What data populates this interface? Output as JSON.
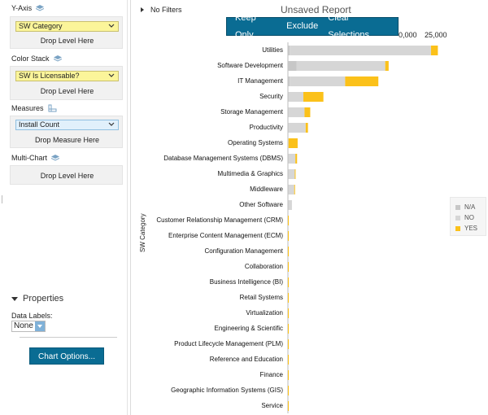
{
  "sidebar": {
    "yaxis": {
      "label": "Y-Axis",
      "field": "SW Category",
      "drop": "Drop Level Here"
    },
    "color": {
      "label": "Color Stack",
      "field": "SW Is Licensable?",
      "drop": "Drop Level Here"
    },
    "measures": {
      "label": "Measures",
      "field": "Install Count",
      "drop": "Drop Measure Here"
    },
    "multichart": {
      "label": "Multi-Chart",
      "drop": "Drop Level Here"
    },
    "properties": {
      "label": "Properties",
      "data_labels_label": "Data Labels:",
      "data_labels_value": "None"
    },
    "chart_options": "Chart Options..."
  },
  "header": {
    "filters": "No Filters",
    "title": "Unsaved Report"
  },
  "toolbar": {
    "keep_only": "Keep Only",
    "exclude": "Exclude",
    "clear": "Clear Selections"
  },
  "colors": {
    "na": "#c7c7c7",
    "no": "#d6d6d6",
    "yes": "#fbc11a",
    "accent": "#0a6c93"
  },
  "chart_data": {
    "type": "bar",
    "orientation": "horizontal",
    "stacked": true,
    "ylabel": "SW Category",
    "x_ticks": [
      "0,000",
      "25,000"
    ],
    "legend": [
      "N/A",
      "NO",
      "YES"
    ],
    "legend_position": "right",
    "categories": [
      "Utilities",
      "Software Development",
      "IT Management",
      "Security",
      "Storage Management",
      "Productivity",
      "Operating Systems",
      "Database Management Systems (DBMS)",
      "Multimedia & Graphics",
      "Middleware",
      "Other Software",
      "Customer Relationship Management (CRM)",
      "Enterprise Content Management (ECM)",
      "Configuration Management",
      "Collaboration",
      "Business Intelligence (BI)",
      "Retail Systems",
      "Virtualization",
      "Engineering & Scientific",
      "Product Lifecycle Management (PLM)",
      "Reference and Education",
      "Finance",
      "Geographic Information Systems (GIS)",
      "Service"
    ],
    "series": [
      {
        "name": "N/A",
        "values": [
          300,
          1500,
          300,
          100,
          100,
          100,
          0,
          100,
          100,
          100,
          100,
          0,
          0,
          0,
          0,
          0,
          0,
          0,
          0,
          0,
          0,
          0,
          0,
          0
        ]
      },
      {
        "name": "NO",
        "values": [
          24700,
          15500,
          9700,
          2600,
          2800,
          3000,
          100,
          1200,
          1100,
          1000,
          600,
          0,
          0,
          0,
          0,
          0,
          0,
          0,
          0,
          0,
          0,
          0,
          0,
          0
        ]
      },
      {
        "name": "YES",
        "values": [
          1200,
          600,
          5800,
          3500,
          1000,
          400,
          1600,
          300,
          100,
          100,
          0,
          150,
          150,
          150,
          150,
          150,
          150,
          150,
          150,
          150,
          150,
          150,
          150,
          150
        ]
      }
    ],
    "xlim": [
      0,
      27000
    ]
  }
}
